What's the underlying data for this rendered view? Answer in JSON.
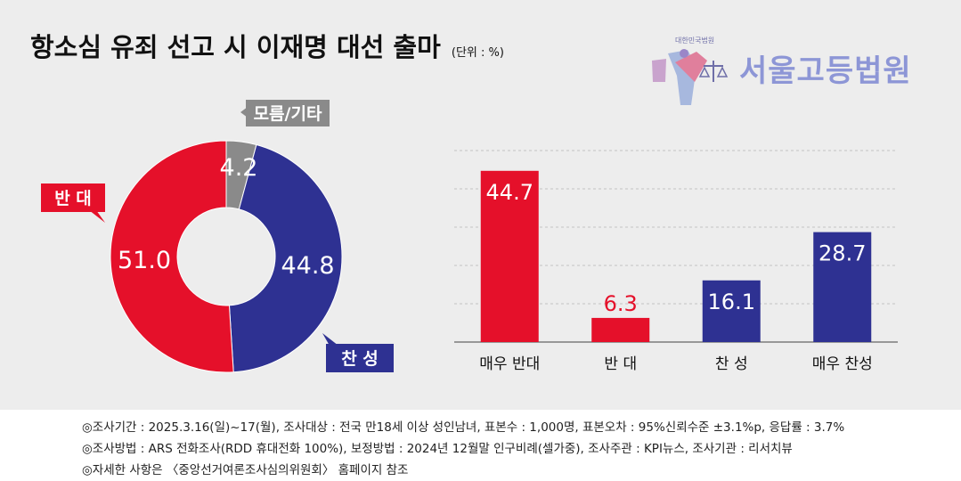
{
  "header": {
    "title": "항소심 유죄 선고 시 이재명 대선 출마",
    "unit": "(단위 : %)"
  },
  "logo": {
    "seal_text": "대한민국법원",
    "text": "서울고등법원"
  },
  "colors": {
    "red": "#e5102a",
    "blue": "#2e3192",
    "gray": "#8a8a8a"
  },
  "chart_data": [
    {
      "type": "pie",
      "labels": [
        "반 대",
        "찬 성",
        "모름/기타"
      ],
      "values": [
        51.0,
        44.8,
        4.2
      ],
      "value_labels": [
        "51.0",
        "44.8",
        "4.2"
      ],
      "colors": [
        "#e5102a",
        "#2e3192",
        "#8a8a8a"
      ],
      "style": "donut"
    },
    {
      "type": "bar",
      "categories": [
        "매우 반대",
        "반 대",
        "찬 성",
        "매우 찬성"
      ],
      "values": [
        44.7,
        6.3,
        16.1,
        28.7
      ],
      "value_labels": [
        "44.7",
        "6.3",
        "16.1",
        "28.7"
      ],
      "colors": [
        "#e5102a",
        "#e5102a",
        "#2e3192",
        "#2e3192"
      ],
      "ylim": [
        0,
        50
      ],
      "grid": true
    }
  ],
  "footnotes": [
    "◎조사기간 : 2025.3.16(일)~17(월), 조사대상 : 전국 만18세 이상 성인남녀, 표본수 : 1,000명, 표본오차 : 95%신뢰수준 ±3.1%p, 응답률 : 3.7%",
    "◎조사방법 : ARS 전화조사(RDD 휴대전화 100%), 보정방법 : 2024년 12월말 인구비례(셀가중), 조사주관 : KPI뉴스, 조사기관 : 리서치뷰",
    "◎자세한 사항은 〈중앙선거여론조사심의위원회〉 홈페이지 참조"
  ]
}
